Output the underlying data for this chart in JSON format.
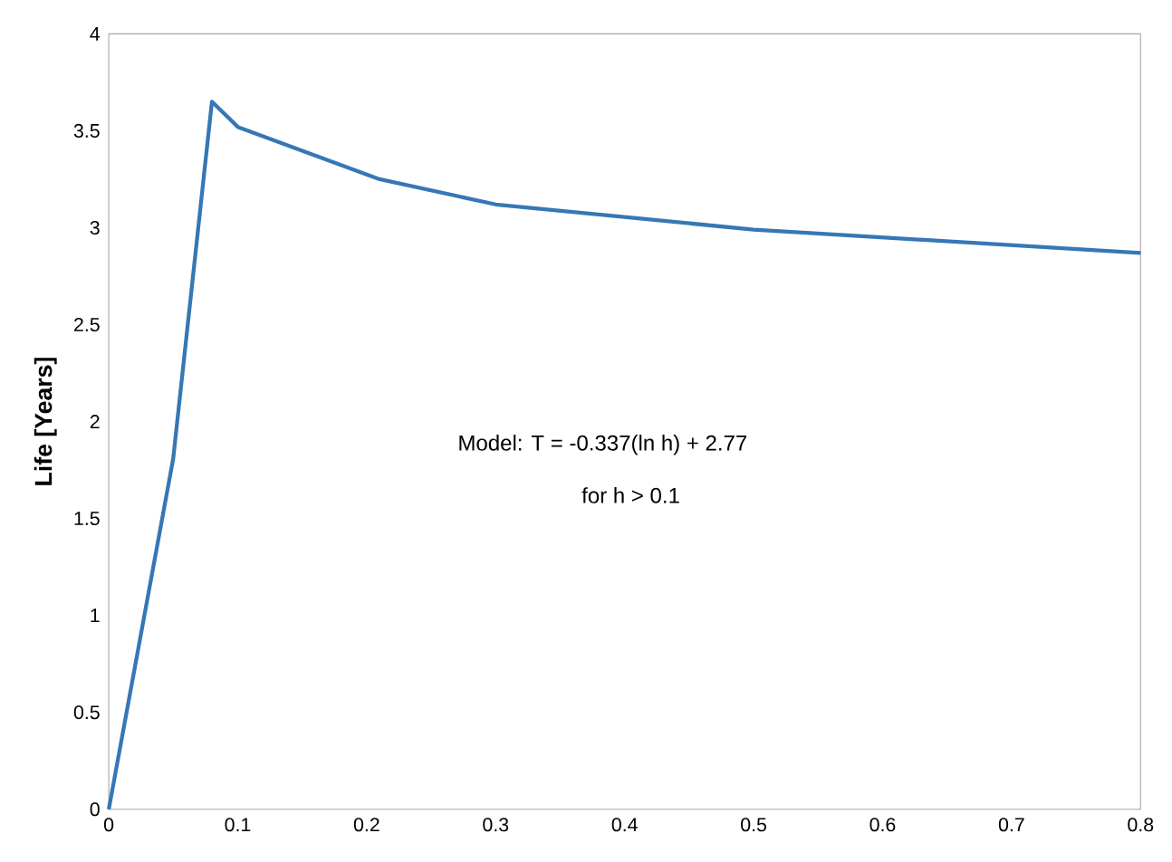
{
  "chart_data": {
    "type": "line",
    "ylabel": "Life [Years]",
    "x": [
      0,
      0.05,
      0.08,
      0.1,
      0.21,
      0.3,
      0.5,
      0.8
    ],
    "series": [
      {
        "color": "#3677b5",
        "values": [
          0,
          1.81,
          3.65,
          3.52,
          3.25,
          3.12,
          2.99,
          2.87
        ]
      }
    ],
    "xlim": [
      0,
      0.8
    ],
    "xticks": [
      0,
      0.1,
      0.2,
      0.3,
      0.4,
      0.5,
      0.6,
      0.7,
      0.8
    ],
    "ylim": [
      0,
      4
    ],
    "yticks": [
      0,
      0.5,
      1,
      1.5,
      2,
      2.5,
      3,
      3.5,
      4
    ],
    "annotations": [
      "Model:  T = -0.337(ln h) + 2.77",
      "for h > 0.1"
    ]
  }
}
